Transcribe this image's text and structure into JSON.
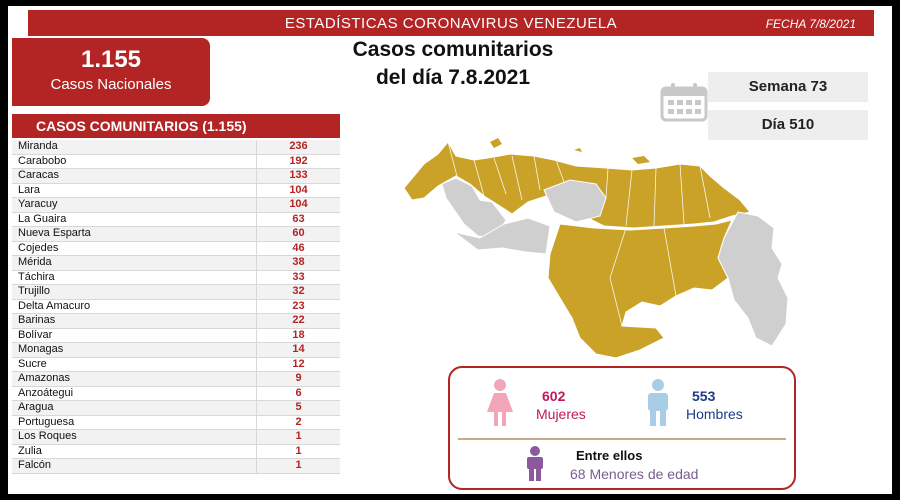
{
  "header": {
    "title": "ESTADÍSTICAS CORONAVIRUS VENEZUELA",
    "date": "FECHA 7/8/2021"
  },
  "national": {
    "total": "1.155",
    "label": "Casos Nacionales"
  },
  "subtitle": {
    "line1": "Casos comunitarios",
    "line2": "del día 7.8.2021"
  },
  "week": "Semana 73",
  "day": "Día 510",
  "table": {
    "title": "CASOS COMUNITARIOS (1.155)",
    "rows": [
      {
        "state": "Miranda",
        "value": "236"
      },
      {
        "state": "Carabobo",
        "value": "192"
      },
      {
        "state": "Caracas",
        "value": "133"
      },
      {
        "state": "Lara",
        "value": "104"
      },
      {
        "state": "Yaracuy",
        "value": "104"
      },
      {
        "state": "La Guaira",
        "value": "63"
      },
      {
        "state": "Nueva Esparta",
        "value": "60"
      },
      {
        "state": "Cojedes",
        "value": "46"
      },
      {
        "state": "Mérida",
        "value": "38"
      },
      {
        "state": "Táchira",
        "value": "33"
      },
      {
        "state": "Trujillo",
        "value": "32"
      },
      {
        "state": "Delta Amacuro",
        "value": "23"
      },
      {
        "state": "Barinas",
        "value": "22"
      },
      {
        "state": "Bolívar",
        "value": "18"
      },
      {
        "state": "Monagas",
        "value": "14"
      },
      {
        "state": "Sucre",
        "value": "12"
      },
      {
        "state": "Amazonas",
        "value": "9"
      },
      {
        "state": "Anzoátegui",
        "value": "6"
      },
      {
        "state": "Aragua",
        "value": "5"
      },
      {
        "state": "Portuguesa",
        "value": "2"
      },
      {
        "state": "Los Roques",
        "value": "1"
      },
      {
        "state": "Zulia",
        "value": "1"
      },
      {
        "state": "Falcón",
        "value": "1"
      }
    ]
  },
  "gender": {
    "women_count": "602",
    "women_label": "Mujeres",
    "men_count": "553",
    "men_label": "Hombres",
    "minors_title": "Entre ellos",
    "minors_label": "68 Menores de edad"
  },
  "colors": {
    "brand_red": "#b32424",
    "map_affected": "#c9a227",
    "map_other": "#cfcfcf",
    "women": "#f2a6b8",
    "men": "#a9cde6",
    "minors": "#8b5a9e"
  },
  "icons": [
    "calendar-icon",
    "woman-icon",
    "man-icon",
    "child-icon"
  ]
}
